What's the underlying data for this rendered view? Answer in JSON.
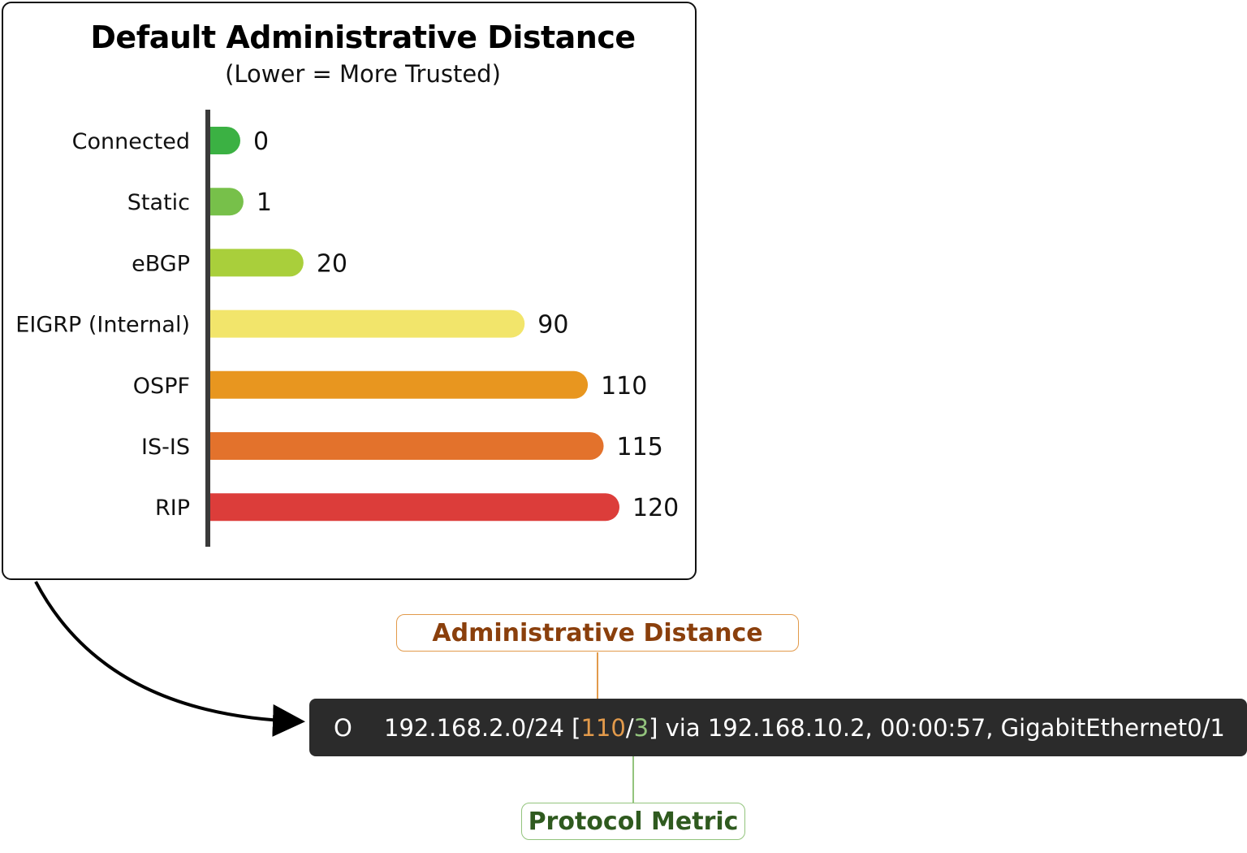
{
  "chart_data": {
    "type": "bar",
    "orientation": "horizontal",
    "title": "Default Administrative Distance",
    "subtitle": "(Lower = More Trusted)",
    "categories": [
      "Connected",
      "Static",
      "eBGP",
      "EIGRP (Internal)",
      "OSPF",
      "IS-IS",
      "RIP"
    ],
    "values": [
      0,
      1,
      20,
      90,
      110,
      115,
      120
    ],
    "value_labels": [
      "0",
      "1",
      "20",
      "90",
      "110",
      "115",
      "120"
    ],
    "colors": [
      "#3bb143",
      "#77c04a",
      "#a9cf3b",
      "#f2e56b",
      "#e8961f",
      "#e3722c",
      "#dc3d3a"
    ],
    "xlim": [
      0,
      120
    ],
    "grid": false
  },
  "route_entry": {
    "code": "O",
    "prefix": "192.168.2.0/24",
    "open_bracket": "[",
    "admin_distance": "110",
    "slash": "/",
    "metric": "3",
    "close_bracket": "]",
    "rest": " via 192.168.10.2, 00:00:57, GigabitEthernet0/1"
  },
  "callouts": {
    "admin_distance": "Administrative Distance",
    "protocol_metric": "Protocol Metric"
  },
  "colors": {
    "ad_accent": "#e29a4b",
    "ad_text": "#8a3f0c",
    "metric_accent": "#93c47d",
    "metric_text": "#2f5a1f",
    "terminal_bg": "#2b2b2b"
  }
}
